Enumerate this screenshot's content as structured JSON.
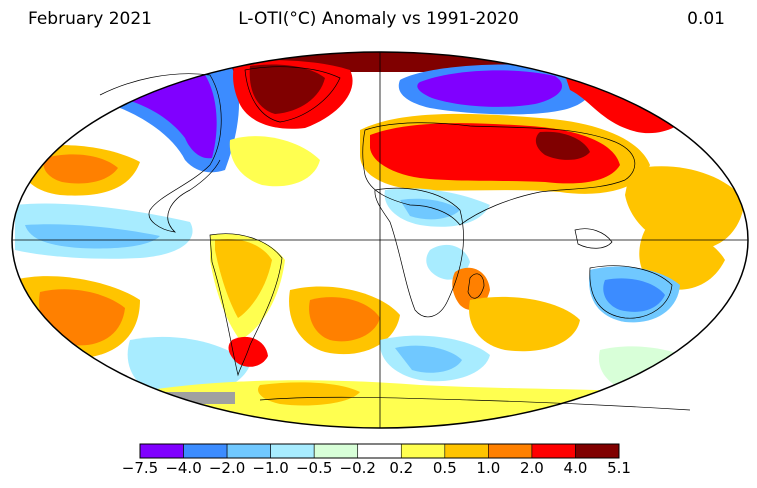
{
  "header": {
    "left": "February 2021",
    "center": "L-OTI(°C) Anomaly vs 1991-2020",
    "right": "0.01"
  },
  "colorbar": {
    "colors": [
      "#8000ff",
      "#3c8cff",
      "#70c8ff",
      "#a8ecff",
      "#d8ffd8",
      "#ffffff",
      "#ffff50",
      "#ffc400",
      "#ff8000",
      "#ff0000",
      "#800000"
    ],
    "labels": [
      "−7.5",
      "−4.0",
      "−2.0",
      "−1.0",
      "−0.5",
      "−0.2",
      "0.2",
      "0.5",
      "1.0",
      "2.0",
      "4.0",
      "5.1"
    ]
  }
}
